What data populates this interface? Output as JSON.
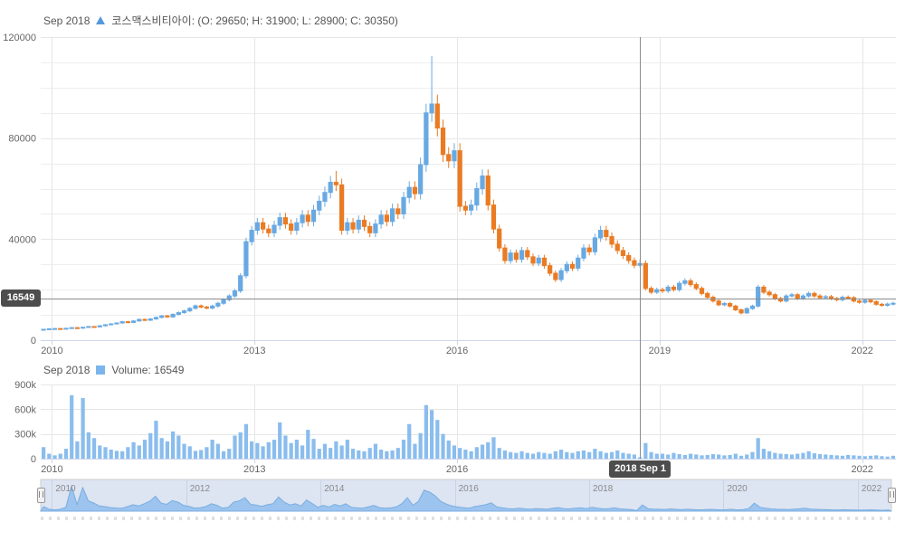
{
  "header": {
    "date_label": "Sep 2018",
    "series_marker": "triangle-up",
    "series_text": "코스맥스비티아이: (O: 29650; H: 31900; L: 28900; C: 30350)"
  },
  "volume_header": {
    "date_label": "Sep 2018",
    "series_text": "Volume: 16549"
  },
  "crosshair": {
    "price_label": "16549",
    "date_label": "2018 Sep 1"
  },
  "colors": {
    "up": "#68a9e2",
    "down": "#ea7b22",
    "volume_bar": "#8abded",
    "legend_triangle": "#5598da",
    "legend_square": "#7cb5ec",
    "grid": "#e6e6e6",
    "grid_minor": "#ededed",
    "axis_line": "#ccd6eb",
    "crosshair": "#8c8c8c",
    "label_bg": "#4d4d4d",
    "navigator_mask": "rgba(102,133,194,0.22)",
    "navigator_area_fill": "rgba(144,190,238,0.85)",
    "navigator_area_line": "#79aee0",
    "navigator_grid": "#c8d4e6"
  },
  "chart_data": {
    "type": "candlestick+volume (monthly)",
    "title": "코스맥스비티아이",
    "start_month": "2009-11",
    "price_axis": {
      "max": 120000,
      "ticks": [
        0,
        40000,
        80000,
        120000
      ],
      "tick_labels": [
        "0",
        "40000",
        "80000",
        "120000"
      ],
      "minor_step": 10000
    },
    "volume_axis": {
      "max": 900000,
      "ticks": [
        0,
        300000,
        600000,
        900000
      ],
      "tick_labels": [
        "0",
        "300k",
        "600k",
        "900k"
      ]
    },
    "x_tick_years": [
      "2010",
      "2013",
      "2016",
      "2019",
      "2022"
    ],
    "navigator_years": [
      "2010",
      "2012",
      "2014",
      "2016",
      "2018",
      "2020",
      "2022"
    ],
    "hover": {
      "month": "2018-09",
      "open": 29650,
      "high": 31900,
      "low": 28900,
      "close": 30350,
      "volume": 16549,
      "crosshair_price": 16549
    },
    "ohlc": [
      [
        4200,
        4450,
        4050,
        4300
      ],
      [
        4300,
        4700,
        4150,
        4500
      ],
      [
        4500,
        4800,
        4300,
        4600
      ],
      [
        4600,
        4800,
        4250,
        4450
      ],
      [
        4450,
        4900,
        4250,
        4700
      ],
      [
        4700,
        5150,
        4500,
        4950
      ],
      [
        4950,
        5150,
        4600,
        4800
      ],
      [
        4800,
        5300,
        4600,
        5100
      ],
      [
        5100,
        5600,
        4900,
        5400
      ],
      [
        5400,
        5600,
        5050,
        5250
      ],
      [
        5250,
        5950,
        5050,
        5700
      ],
      [
        5700,
        6350,
        5450,
        6100
      ],
      [
        6100,
        6700,
        5850,
        6450
      ],
      [
        6450,
        7050,
        6200,
        6800
      ],
      [
        6800,
        7600,
        6550,
        7300
      ],
      [
        7300,
        7600,
        6700,
        7000
      ],
      [
        7000,
        7900,
        6700,
        7600
      ],
      [
        7600,
        8550,
        7300,
        8200
      ],
      [
        8200,
        8550,
        7600,
        7900
      ],
      [
        7900,
        8750,
        7600,
        8400
      ],
      [
        8400,
        9350,
        8050,
        9000
      ],
      [
        9000,
        10000,
        8650,
        9600
      ],
      [
        9600,
        10000,
        8850,
        9200
      ],
      [
        9200,
        10600,
        8850,
        10200
      ],
      [
        10200,
        11350,
        9800,
        10900
      ],
      [
        10900,
        12050,
        10450,
        11600
      ],
      [
        11600,
        13100,
        11150,
        12600
      ],
      [
        12600,
        14150,
        12100,
        13600
      ],
      [
        13600,
        14150,
        12600,
        13100
      ],
      [
        13100,
        13600,
        12200,
        12700
      ],
      [
        12700,
        14050,
        12200,
        13500
      ],
      [
        13500,
        15200,
        12950,
        14600
      ],
      [
        14600,
        16650,
        14000,
        16000
      ],
      [
        16000,
        18200,
        15350,
        17500
      ],
      [
        17500,
        20300,
        16800,
        19500
      ],
      [
        19500,
        26500,
        18700,
        25500
      ],
      [
        25500,
        40550,
        24500,
        39000
      ],
      [
        39000,
        45250,
        37450,
        43500
      ],
      [
        43500,
        48350,
        41750,
        46500
      ],
      [
        46500,
        48350,
        42250,
        44000
      ],
      [
        44000,
        45750,
        40800,
        42500
      ],
      [
        42500,
        47300,
        40800,
        45500
      ],
      [
        45500,
        50450,
        43700,
        48500
      ],
      [
        48500,
        50450,
        44150,
        46000
      ],
      [
        46000,
        47850,
        41750,
        43500
      ],
      [
        43500,
        48350,
        41750,
        46500
      ],
      [
        46500,
        51500,
        44650,
        49500
      ],
      [
        49500,
        51500,
        45100,
        47000
      ],
      [
        47000,
        53550,
        45100,
        51500
      ],
      [
        51500,
        57200,
        49450,
        55000
      ],
      [
        55000,
        60850,
        52800,
        58500
      ],
      [
        58500,
        65000,
        56150,
        62500
      ],
      [
        62500,
        67000,
        59050,
        61500
      ],
      [
        61500,
        63950,
        41750,
        43500
      ],
      [
        43500,
        48350,
        41750,
        46500
      ],
      [
        46500,
        48350,
        42250,
        44000
      ],
      [
        44000,
        49400,
        42250,
        47500
      ],
      [
        47500,
        49400,
        43200,
        45000
      ],
      [
        45000,
        46800,
        40800,
        42500
      ],
      [
        42500,
        47850,
        40800,
        46000
      ],
      [
        46000,
        51500,
        44150,
        49500
      ],
      [
        49500,
        51500,
        45100,
        47000
      ],
      [
        47000,
        54100,
        45100,
        52000
      ],
      [
        52000,
        54100,
        48000,
        50000
      ],
      [
        50000,
        58750,
        48000,
        56500
      ],
      [
        56500,
        62900,
        54250,
        60500
      ],
      [
        60500,
        62900,
        55700,
        58000
      ],
      [
        58000,
        72300,
        55700,
        69500
      ],
      [
        69500,
        93600,
        66700,
        90000
      ],
      [
        90000,
        112500,
        86400,
        93500
      ],
      [
        93500,
        97250,
        80650,
        84000
      ],
      [
        84000,
        87350,
        70550,
        73500
      ],
      [
        73500,
        76450,
        68150,
        71000
      ],
      [
        71000,
        78000,
        68150,
        75000
      ],
      [
        75000,
        78000,
        50900,
        53000
      ],
      [
        53000,
        55100,
        49450,
        51500
      ],
      [
        51500,
        55650,
        49450,
        53500
      ],
      [
        53500,
        62400,
        51350,
        60000
      ],
      [
        60000,
        67600,
        57600,
        65000
      ],
      [
        65000,
        67600,
        51350,
        53500
      ],
      [
        53500,
        55650,
        42250,
        44000
      ],
      [
        44000,
        45750,
        35050,
        36500
      ],
      [
        36500,
        37950,
        30250,
        31500
      ],
      [
        31500,
        35900,
        30250,
        34500
      ],
      [
        34500,
        35900,
        30700,
        32000
      ],
      [
        32000,
        36900,
        30700,
        35500
      ],
      [
        35500,
        36900,
        31700,
        33000
      ],
      [
        33000,
        34300,
        29300,
        30500
      ],
      [
        30500,
        33800,
        29300,
        32500
      ],
      [
        32500,
        33800,
        28300,
        29500
      ],
      [
        29500,
        30700,
        25450,
        26500
      ],
      [
        26500,
        27550,
        23050,
        24000
      ],
      [
        24000,
        28600,
        23050,
        27500
      ],
      [
        27500,
        31200,
        26400,
        30000
      ],
      [
        30000,
        31200,
        27350,
        28500
      ],
      [
        28500,
        33800,
        27350,
        32500
      ],
      [
        32500,
        37950,
        31200,
        36500
      ],
      [
        36500,
        37950,
        33600,
        35000
      ],
      [
        35000,
        42100,
        33600,
        40500
      ],
      [
        40500,
        45250,
        38900,
        43500
      ],
      [
        43500,
        45250,
        39350,
        41000
      ],
      [
        41000,
        42650,
        36500,
        38000
      ],
      [
        38000,
        39500,
        34100,
        35500
      ],
      [
        35500,
        36900,
        32150,
        33500
      ],
      [
        33500,
        34850,
        30250,
        31500
      ],
      [
        31500,
        32750,
        28450,
        29650
      ],
      [
        29650,
        31900,
        28900,
        30350
      ],
      [
        30350,
        31550,
        19700,
        20500
      ],
      [
        20500,
        21300,
        18250,
        19000
      ],
      [
        19000,
        20800,
        18250,
        20000
      ],
      [
        20000,
        20800,
        18700,
        19500
      ],
      [
        19500,
        21850,
        18700,
        21000
      ],
      [
        21000,
        21850,
        19200,
        20000
      ],
      [
        20000,
        23400,
        19200,
        22500
      ],
      [
        22500,
        24450,
        21600,
        23500
      ],
      [
        23500,
        24450,
        21100,
        22000
      ],
      [
        22000,
        22900,
        19700,
        20500
      ],
      [
        20500,
        21300,
        17750,
        18500
      ],
      [
        18500,
        19250,
        16300,
        17000
      ],
      [
        17000,
        17700,
        14900,
        15500
      ],
      [
        15500,
        16100,
        13450,
        14000
      ],
      [
        14000,
        15100,
        13450,
        14500
      ],
      [
        14500,
        15100,
        12950,
        13500
      ],
      [
        13500,
        14050,
        11500,
        12000
      ],
      [
        12000,
        12500,
        10200,
        10800
      ],
      [
        10800,
        13000,
        10350,
        12500
      ],
      [
        12500,
        14050,
        12000,
        13500
      ],
      [
        13500,
        21850,
        12950,
        21000
      ],
      [
        21000,
        21850,
        18250,
        19000
      ],
      [
        19000,
        19750,
        17300,
        18000
      ],
      [
        18000,
        18700,
        15850,
        16500
      ],
      [
        16500,
        17150,
        14900,
        15500
      ],
      [
        15500,
        18200,
        14900,
        17500
      ],
      [
        17500,
        18700,
        16800,
        18000
      ],
      [
        18000,
        18700,
        15850,
        16500
      ],
      [
        16500,
        18200,
        15850,
        17500
      ],
      [
        17500,
        19250,
        16800,
        18500
      ],
      [
        18500,
        19250,
        16800,
        17500
      ],
      [
        17500,
        18200,
        16100,
        16800
      ],
      [
        16800,
        17900,
        16150,
        17200
      ],
      [
        17200,
        17900,
        15850,
        16500
      ],
      [
        16500,
        17150,
        15350,
        16000
      ],
      [
        16000,
        17700,
        15350,
        17000
      ],
      [
        17000,
        17700,
        16150,
        16800
      ],
      [
        16800,
        17450,
        14900,
        15500
      ],
      [
        15500,
        16100,
        14400,
        15000
      ],
      [
        15000,
        16450,
        14400,
        15800
      ],
      [
        15800,
        16450,
        14600,
        15200
      ],
      [
        15200,
        15800,
        13650,
        14200
      ],
      [
        14200,
        14750,
        13250,
        13800
      ],
      [
        13800,
        14850,
        13250,
        14300
      ],
      [
        14300,
        15200,
        13750,
        14600
      ]
    ],
    "volume": [
      140000,
      60000,
      40000,
      60000,
      120000,
      770000,
      210000,
      735000,
      320000,
      250000,
      160000,
      140000,
      110000,
      95000,
      90000,
      140000,
      200000,
      160000,
      230000,
      310000,
      460000,
      250000,
      210000,
      330000,
      280000,
      180000,
      150000,
      95000,
      105000,
      140000,
      230000,
      180000,
      90000,
      120000,
      280000,
      320000,
      420000,
      210000,
      190000,
      150000,
      200000,
      230000,
      440000,
      280000,
      190000,
      230000,
      160000,
      350000,
      240000,
      120000,
      180000,
      130000,
      210000,
      160000,
      230000,
      120000,
      100000,
      90000,
      130000,
      180000,
      110000,
      90000,
      100000,
      130000,
      230000,
      420000,
      180000,
      310000,
      650000,
      590000,
      470000,
      300000,
      220000,
      160000,
      130000,
      110000,
      90000,
      140000,
      170000,
      200000,
      260000,
      130000,
      100000,
      80000,
      70000,
      90000,
      70000,
      60000,
      80000,
      70000,
      60000,
      90000,
      110000,
      80000,
      70000,
      90000,
      100000,
      80000,
      120000,
      90000,
      70000,
      80000,
      100000,
      70000,
      60000,
      50000,
      16549,
      190000,
      80000,
      60000,
      60000,
      50000,
      70000,
      55000,
      45000,
      60000,
      50000,
      40000,
      45000,
      55000,
      50000,
      40000,
      45000,
      60000,
      35000,
      50000,
      80000,
      250000,
      120000,
      90000,
      70000,
      60000,
      55000,
      50000,
      60000,
      70000,
      90000,
      65000,
      55000,
      50000,
      45000,
      40000,
      35000,
      45000,
      40000,
      35000,
      30000,
      35000,
      40000,
      30000,
      25000,
      35000
    ]
  }
}
